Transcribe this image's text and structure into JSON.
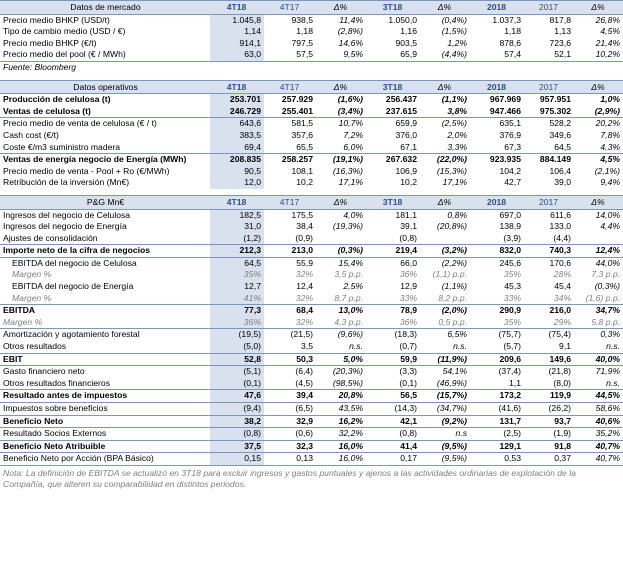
{
  "market": {
    "header": [
      "Datos de mercado",
      "4T18",
      "4T17",
      "Δ%",
      "3T18",
      "Δ%",
      "2018",
      "2017",
      "Δ%"
    ],
    "rows": [
      [
        "Precio medio BHKP (USD/t)",
        "1.045,8",
        "938,5",
        "11,4%",
        "1.050,0",
        "(0,4%)",
        "1.037,3",
        "817,8",
        "26,8%"
      ],
      [
        "Tipo de cambio medio (USD / €)",
        "1,14",
        "1,18",
        "(2,8%)",
        "1,16",
        "(1,5%)",
        "1,18",
        "1,13",
        "4,5%"
      ],
      [
        "Precio medio BHKP (€/t)",
        "914,1",
        "797,5",
        "14,6%",
        "903,5",
        "1,2%",
        "878,6",
        "723,6",
        "21,4%"
      ],
      [
        "Precio medio del pool (€ / MWh)",
        "63,0",
        "57,5",
        "9,5%",
        "65,9",
        "(4,4%)",
        "57,4",
        "52,1",
        "10,2%"
      ]
    ],
    "source": "Fuente: Bloomberg"
  },
  "ops": {
    "header": [
      "Datos operativos",
      "4T18",
      "4T17",
      "Δ%",
      "3T18",
      "Δ%",
      "2018",
      "2017",
      "Δ%"
    ],
    "rows": [
      [
        "Producción de celulosa (t)",
        "253.701",
        "257.929",
        "(1,6%)",
        "256.437",
        "(1,1%)",
        "967.969",
        "957.951",
        "1,0%"
      ],
      [
        "Ventas de celulosa (t)",
        "246.729",
        "255.401",
        "(3,4%)",
        "237.615",
        "3,8%",
        "947.466",
        "975.302",
        "(2,9%)"
      ],
      [
        "Precio medio de venta de celulosa (€ / t)",
        "643,6",
        "581,5",
        "10,7%",
        "659,9",
        "(2,5%)",
        "635,1",
        "528,2",
        "20,2%"
      ],
      [
        "Cash cost (€/t)",
        "383,5",
        "357,6",
        "7,2%",
        "376,0",
        "2,0%",
        "376,9",
        "349,6",
        "7,8%"
      ],
      [
        "Coste €/m3 suministro madera",
        "69,4",
        "65,5",
        "6,0%",
        "67,1",
        "3,3%",
        "67,3",
        "64,5",
        "4,3%"
      ],
      [
        "Ventas de energía negocio de Energía (MWh)",
        "208.835",
        "258.257",
        "(19,1%)",
        "267.632",
        "(22,0%)",
        "923.935",
        "884.149",
        "4,5%"
      ],
      [
        "Precio medio de venta - Pool + Ro (€/MWh)",
        "90,5",
        "108,1",
        "(16,3%)",
        "106,9",
        "(15,3%)",
        "104,2",
        "106,4",
        "(2,1%)"
      ],
      [
        "Retribución de la inversión (Mn€)",
        "12,0",
        "10,2",
        "17,1%",
        "10,2",
        "17,1%",
        "42,7",
        "39,0",
        "9,4%"
      ]
    ]
  },
  "pyg": {
    "header": [
      "P&G Mn€",
      "4T18",
      "4T17",
      "Δ%",
      "3T18",
      "Δ%",
      "2018",
      "2017",
      "Δ%"
    ],
    "rows": [
      [
        "Ingresos del negocio de Celulosa",
        "182,5",
        "175,5",
        "4,0%",
        "181,1",
        "0,8%",
        "697,0",
        "611,6",
        "14,0%"
      ],
      [
        "Ingresos del negocio de Energía",
        "31,0",
        "38,4",
        "(19,3%)",
        "39,1",
        "(20,8%)",
        "138,9",
        "133,0",
        "4,4%"
      ],
      [
        "Ajustes de consolidación",
        "(1,2)",
        "(0,9)",
        "",
        "(0,8)",
        "",
        "(3,9)",
        "(4,4)",
        ""
      ],
      [
        "Importe neto de la cifra de negocios",
        "212,3",
        "213,0",
        "(0,3%)",
        "219,4",
        "(3,2%)",
        "832,0",
        "740,3",
        "12,4%"
      ],
      [
        "EBITDA del negocio de Celulosa",
        "64,5",
        "55,9",
        "15,4%",
        "66,0",
        "(2,2%)",
        "245,6",
        "170,6",
        "44,0%"
      ],
      [
        "Margen %",
        "35%",
        "32%",
        "3,5 p.p.",
        "36%",
        "(1,1) p.p.",
        "35%",
        "28%",
        "7,3 p.p."
      ],
      [
        "EBITDA del negocio de Energía",
        "12,7",
        "12,4",
        "2,5%",
        "12,9",
        "(1,1%)",
        "45,3",
        "45,4",
        "(0,3%)"
      ],
      [
        "Margen %",
        "41%",
        "32%",
        "8,7 p.p.",
        "33%",
        "8,2 p.p.",
        "33%",
        "34%",
        "(1,6) p.p."
      ],
      [
        "EBITDA",
        "77,3",
        "68,4",
        "13,0%",
        "78,9",
        "(2,0%)",
        "290,9",
        "216,0",
        "34,7%"
      ],
      [
        "Margen %",
        "36%",
        "32%",
        "4,3 p.p.",
        "36%",
        "0,5 p.p.",
        "35%",
        "29%",
        "5,8 p.p."
      ],
      [
        "Amortización y agotamiento forestal",
        "(19,5)",
        "(21,5)",
        "(9,6%)",
        "(18,3)",
        "6,5%",
        "(75,7)",
        "(75,4)",
        "0,3%"
      ],
      [
        "Otros resultados",
        "(5,0)",
        "3,5",
        "n.s.",
        "(0,7)",
        "n.s.",
        "(5,7)",
        "9,1",
        "n.s."
      ],
      [
        "EBIT",
        "52,8",
        "50,3",
        "5,0%",
        "59,9",
        "(11,9%)",
        "209,6",
        "149,6",
        "40,0%"
      ],
      [
        "Gasto financiero neto",
        "(5,1)",
        "(6,4)",
        "(20,3%)",
        "(3,3)",
        "54,1%",
        "(37,4)",
        "(21,8)",
        "71,9%"
      ],
      [
        "Otros resultados financieros",
        "(0,1)",
        "(4,5)",
        "(98,5%)",
        "(0,1)",
        "(46,9%)",
        "1,1",
        "(8,0)",
        "n.s."
      ],
      [
        "Resultado antes de impuestos",
        "47,6",
        "39,4",
        "20,8%",
        "56,5",
        "(15,7%)",
        "173,2",
        "119,9",
        "44,5%"
      ],
      [
        "Impuestos sobre beneficios",
        "(9,4)",
        "(6,5)",
        "43,5%",
        "(14,3)",
        "(34,7%)",
        "(41,6)",
        "(26,2)",
        "58,6%"
      ],
      [
        "Beneficio Neto",
        "38,2",
        "32,9",
        "16,2%",
        "42,1",
        "(9,2%)",
        "131,7",
        "93,7",
        "40,6%"
      ],
      [
        "Resultado Socios Externos",
        "(0,8)",
        "(0,6)",
        "32,2%",
        "(0,8)",
        "n.s",
        "(2,5)",
        "(1,9)",
        "35,2%"
      ],
      [
        "Beneficio Neto Atribuible",
        "37,5",
        "32,3",
        "16,0%",
        "41,4",
        "(9,5%)",
        "129,1",
        "91,8",
        "40,7%"
      ],
      [
        "Beneficio Neto por Acción (BPA Básico)",
        "0,15",
        "0,13",
        "16,0%",
        "0,17",
        "(9,5%)",
        "0,53",
        "0,37",
        "40,7%"
      ]
    ]
  },
  "note": "Nota: La definición de EBITDA se actualizó en 3T18 para excluir ingresos y gastos puntuales y ajenos a las actividades ordinarias de explotación de la Compañía, que alteren su comparabilidad en distintos periodos."
}
